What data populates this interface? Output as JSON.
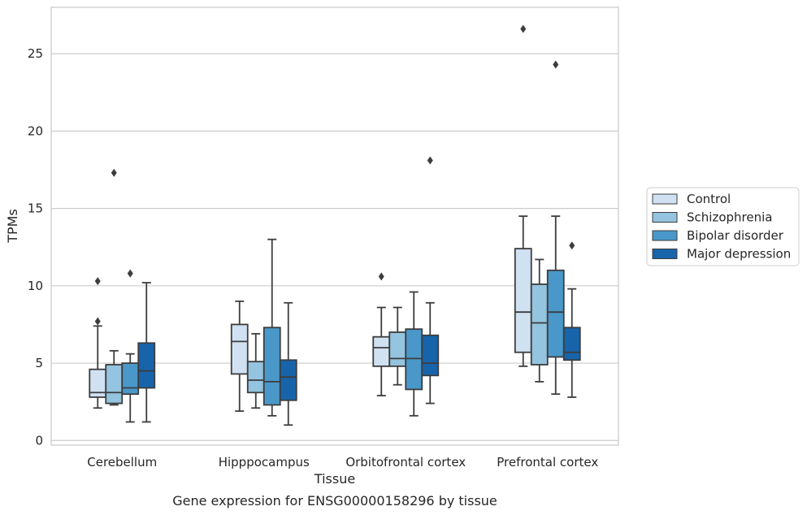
{
  "caption": "Gene expression for ENSG00000158296 by tissue",
  "chart_data": {
    "type": "box",
    "xlabel": "Tissue",
    "ylabel": "TPMs",
    "ylim": [
      -0.3,
      28
    ],
    "yticks": [
      0,
      5,
      10,
      15,
      20,
      25
    ],
    "grid": "horizontal",
    "legend_position": "right",
    "categories": [
      "Cerebellum",
      "Hipppocampus",
      "Orbitofrontal cortex",
      "Prefrontal cortex"
    ],
    "series": [
      {
        "name": "Control",
        "color": "#d0e1f2",
        "stats": [
          {
            "whislo": 2.1,
            "q1": 2.8,
            "med": 3.1,
            "q3": 4.6,
            "whishi": 7.4,
            "fliers": [
              7.7,
              10.3
            ]
          },
          {
            "whislo": 1.9,
            "q1": 4.3,
            "med": 6.4,
            "q3": 7.5,
            "whishi": 9.0,
            "fliers": []
          },
          {
            "whislo": 2.9,
            "q1": 4.8,
            "med": 6.0,
            "q3": 6.7,
            "whishi": 8.6,
            "fliers": [
              10.6
            ]
          },
          {
            "whislo": 4.8,
            "q1": 5.7,
            "med": 8.3,
            "q3": 12.4,
            "whishi": 14.5,
            "fliers": [
              26.6
            ]
          }
        ]
      },
      {
        "name": "Schizophrenia",
        "color": "#94c4df",
        "stats": [
          {
            "whislo": 2.3,
            "q1": 2.4,
            "med": 3.1,
            "q3": 4.9,
            "whishi": 5.8,
            "fliers": [
              17.3
            ]
          },
          {
            "whislo": 2.1,
            "q1": 3.1,
            "med": 3.9,
            "q3": 5.1,
            "whishi": 6.9,
            "fliers": []
          },
          {
            "whislo": 3.6,
            "q1": 4.8,
            "med": 5.3,
            "q3": 7.0,
            "whishi": 8.6,
            "fliers": []
          },
          {
            "whislo": 3.8,
            "q1": 4.9,
            "med": 7.6,
            "q3": 10.1,
            "whishi": 11.7,
            "fliers": []
          }
        ]
      },
      {
        "name": "Bipolar disorder",
        "color": "#4a98c9",
        "stats": [
          {
            "whislo": 1.2,
            "q1": 3.0,
            "med": 3.4,
            "q3": 5.0,
            "whishi": 5.6,
            "fliers": [
              10.8
            ]
          },
          {
            "whislo": 1.6,
            "q1": 2.3,
            "med": 3.8,
            "q3": 7.3,
            "whishi": 13.0,
            "fliers": []
          },
          {
            "whislo": 1.6,
            "q1": 3.3,
            "med": 5.3,
            "q3": 7.2,
            "whishi": 9.6,
            "fliers": []
          },
          {
            "whislo": 3.0,
            "q1": 5.4,
            "med": 8.3,
            "q3": 11.0,
            "whishi": 14.5,
            "fliers": [
              24.3
            ]
          }
        ]
      },
      {
        "name": "Major depression",
        "color": "#1764ab",
        "stats": [
          {
            "whislo": 1.2,
            "q1": 3.4,
            "med": 4.5,
            "q3": 6.3,
            "whishi": 10.2,
            "fliers": []
          },
          {
            "whislo": 1.0,
            "q1": 2.6,
            "med": 4.1,
            "q3": 5.2,
            "whishi": 8.9,
            "fliers": []
          },
          {
            "whislo": 2.4,
            "q1": 4.2,
            "med": 5.0,
            "q3": 6.8,
            "whishi": 8.9,
            "fliers": [
              18.1
            ]
          },
          {
            "whislo": 2.8,
            "q1": 5.2,
            "med": 5.7,
            "q3": 7.3,
            "whishi": 9.8,
            "fliers": [
              12.6
            ]
          }
        ]
      }
    ]
  }
}
